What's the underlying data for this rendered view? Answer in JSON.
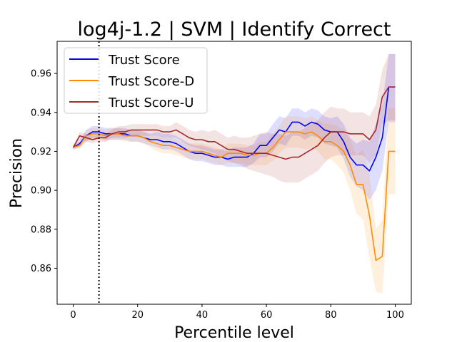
{
  "chart_data": {
    "type": "line",
    "title": "log4j-1.2 | SVM | Identify Correct",
    "xlabel": "Percentile level",
    "ylabel": "Precision",
    "xlim": [
      -5,
      105
    ],
    "ylim": [
      0.8415,
      0.9765
    ],
    "xticks": [
      0,
      20,
      40,
      60,
      80,
      100
    ],
    "yticks": [
      0.86,
      0.88,
      0.9,
      0.92,
      0.94,
      0.96
    ],
    "xtick_labels": [
      "0",
      "20",
      "40",
      "60",
      "80",
      "100"
    ],
    "ytick_labels": [
      "0.86",
      "0.88",
      "0.90",
      "0.92",
      "0.94",
      "0.96"
    ],
    "grid": false,
    "legend_position": "upper-left",
    "vline": {
      "x": 8,
      "style": "dotted",
      "color": "#000000"
    },
    "series": [
      {
        "name": "Trust Score",
        "color": "#0000ff",
        "x": [
          0,
          2,
          4,
          6,
          8,
          10,
          12,
          14,
          16,
          18,
          20,
          22,
          24,
          26,
          28,
          30,
          32,
          34,
          36,
          38,
          40,
          42,
          44,
          46,
          48,
          50,
          52,
          54,
          56,
          58,
          60,
          62,
          64,
          66,
          68,
          70,
          72,
          74,
          76,
          78,
          80,
          82,
          84,
          86,
          88,
          90,
          92,
          94,
          96,
          98,
          100
        ],
        "y": [
          0.922,
          0.924,
          0.928,
          0.93,
          0.93,
          0.929,
          0.929,
          0.929,
          0.929,
          0.928,
          0.928,
          0.927,
          0.926,
          0.926,
          0.925,
          0.925,
          0.924,
          0.922,
          0.92,
          0.919,
          0.919,
          0.918,
          0.917,
          0.917,
          0.916,
          0.917,
          0.917,
          0.917,
          0.919,
          0.923,
          0.923,
          0.927,
          0.931,
          0.93,
          0.935,
          0.935,
          0.933,
          0.935,
          0.934,
          0.931,
          0.93,
          0.93,
          0.925,
          0.917,
          0.913,
          0.913,
          0.91,
          0.917,
          0.927,
          0.953,
          0.953
        ],
        "band_low": [
          0.921,
          0.922,
          0.925,
          0.927,
          0.927,
          0.926,
          0.926,
          0.926,
          0.926,
          0.925,
          0.925,
          0.924,
          0.923,
          0.922,
          0.921,
          0.921,
          0.92,
          0.918,
          0.916,
          0.915,
          0.915,
          0.914,
          0.913,
          0.913,
          0.912,
          0.912,
          0.912,
          0.912,
          0.914,
          0.917,
          0.917,
          0.92,
          0.924,
          0.923,
          0.928,
          0.928,
          0.926,
          0.928,
          0.927,
          0.924,
          0.923,
          0.922,
          0.916,
          0.907,
          0.902,
          0.9,
          0.895,
          0.9,
          0.91,
          0.935,
          0.935
        ],
        "band_high": [
          0.923,
          0.926,
          0.931,
          0.933,
          0.933,
          0.932,
          0.932,
          0.932,
          0.932,
          0.931,
          0.931,
          0.93,
          0.929,
          0.93,
          0.929,
          0.929,
          0.928,
          0.926,
          0.924,
          0.923,
          0.923,
          0.922,
          0.921,
          0.921,
          0.92,
          0.922,
          0.922,
          0.922,
          0.924,
          0.929,
          0.929,
          0.934,
          0.938,
          0.937,
          0.942,
          0.942,
          0.94,
          0.942,
          0.941,
          0.938,
          0.937,
          0.938,
          0.934,
          0.927,
          0.924,
          0.926,
          0.925,
          0.934,
          0.944,
          0.97,
          0.97
        ]
      },
      {
        "name": "Trust Score-D",
        "color": "#ff8c00",
        "x": [
          0,
          2,
          4,
          6,
          8,
          10,
          12,
          14,
          16,
          18,
          20,
          22,
          24,
          26,
          28,
          30,
          32,
          34,
          36,
          38,
          40,
          42,
          44,
          46,
          48,
          50,
          52,
          54,
          56,
          58,
          60,
          62,
          64,
          66,
          68,
          70,
          72,
          74,
          76,
          78,
          80,
          82,
          84,
          86,
          88,
          90,
          92,
          94,
          96,
          98,
          100
        ],
        "y": [
          0.922,
          0.923,
          0.928,
          0.929,
          0.929,
          0.928,
          0.929,
          0.929,
          0.928,
          0.928,
          0.928,
          0.927,
          0.925,
          0.924,
          0.923,
          0.923,
          0.922,
          0.921,
          0.92,
          0.92,
          0.92,
          0.919,
          0.918,
          0.917,
          0.919,
          0.919,
          0.919,
          0.918,
          0.918,
          0.919,
          0.919,
          0.922,
          0.926,
          0.93,
          0.93,
          0.93,
          0.929,
          0.93,
          0.928,
          0.925,
          0.925,
          0.923,
          0.92,
          0.913,
          0.903,
          0.903,
          0.887,
          0.864,
          0.866,
          0.92,
          0.92
        ],
        "band_low": [
          0.921,
          0.921,
          0.925,
          0.926,
          0.926,
          0.925,
          0.926,
          0.926,
          0.925,
          0.925,
          0.925,
          0.924,
          0.922,
          0.92,
          0.919,
          0.919,
          0.918,
          0.917,
          0.916,
          0.916,
          0.916,
          0.915,
          0.914,
          0.913,
          0.914,
          0.914,
          0.914,
          0.913,
          0.913,
          0.913,
          0.913,
          0.915,
          0.919,
          0.922,
          0.922,
          0.922,
          0.921,
          0.922,
          0.92,
          0.916,
          0.916,
          0.913,
          0.909,
          0.9,
          0.888,
          0.885,
          0.865,
          0.848,
          0.847,
          0.898,
          0.898
        ],
        "band_high": [
          0.923,
          0.925,
          0.931,
          0.932,
          0.932,
          0.931,
          0.932,
          0.932,
          0.931,
          0.931,
          0.931,
          0.93,
          0.928,
          0.928,
          0.927,
          0.927,
          0.926,
          0.925,
          0.924,
          0.924,
          0.924,
          0.923,
          0.922,
          0.921,
          0.924,
          0.924,
          0.924,
          0.923,
          0.923,
          0.925,
          0.925,
          0.929,
          0.933,
          0.938,
          0.938,
          0.938,
          0.937,
          0.938,
          0.936,
          0.934,
          0.934,
          0.933,
          0.931,
          0.926,
          0.918,
          0.921,
          0.909,
          0.88,
          0.885,
          0.942,
          0.942
        ]
      },
      {
        "name": "Trust Score-U",
        "color": "#a52a2a",
        "x": [
          0,
          2,
          4,
          6,
          8,
          10,
          12,
          14,
          16,
          18,
          20,
          22,
          24,
          26,
          28,
          30,
          32,
          34,
          36,
          38,
          40,
          42,
          44,
          46,
          48,
          50,
          52,
          54,
          56,
          58,
          60,
          62,
          64,
          66,
          68,
          70,
          72,
          74,
          76,
          78,
          80,
          82,
          84,
          86,
          88,
          90,
          92,
          94,
          96,
          98,
          100
        ],
        "y": [
          0.922,
          0.928,
          0.927,
          0.926,
          0.927,
          0.927,
          0.929,
          0.93,
          0.93,
          0.931,
          0.931,
          0.931,
          0.931,
          0.931,
          0.93,
          0.93,
          0.931,
          0.929,
          0.927,
          0.926,
          0.926,
          0.925,
          0.925,
          0.923,
          0.921,
          0.921,
          0.92,
          0.919,
          0.919,
          0.919,
          0.919,
          0.918,
          0.917,
          0.916,
          0.917,
          0.917,
          0.919,
          0.921,
          0.923,
          0.927,
          0.93,
          0.93,
          0.93,
          0.929,
          0.929,
          0.929,
          0.926,
          0.931,
          0.948,
          0.953,
          0.953
        ],
        "band_low": [
          0.921,
          0.926,
          0.925,
          0.924,
          0.925,
          0.925,
          0.927,
          0.927,
          0.927,
          0.928,
          0.928,
          0.928,
          0.928,
          0.928,
          0.927,
          0.927,
          0.927,
          0.925,
          0.923,
          0.922,
          0.921,
          0.92,
          0.919,
          0.917,
          0.915,
          0.914,
          0.913,
          0.911,
          0.91,
          0.909,
          0.908,
          0.907,
          0.905,
          0.904,
          0.904,
          0.904,
          0.906,
          0.908,
          0.91,
          0.914,
          0.917,
          0.918,
          0.918,
          0.918,
          0.918,
          0.918,
          0.914,
          0.918,
          0.934,
          0.936,
          0.936
        ],
        "band_high": [
          0.923,
          0.93,
          0.929,
          0.928,
          0.929,
          0.929,
          0.931,
          0.933,
          0.933,
          0.934,
          0.934,
          0.934,
          0.934,
          0.934,
          0.933,
          0.933,
          0.935,
          0.933,
          0.931,
          0.93,
          0.931,
          0.93,
          0.931,
          0.929,
          0.927,
          0.928,
          0.927,
          0.927,
          0.928,
          0.929,
          0.93,
          0.929,
          0.929,
          0.928,
          0.93,
          0.93,
          0.932,
          0.934,
          0.936,
          0.94,
          0.943,
          0.942,
          0.942,
          0.94,
          0.94,
          0.94,
          0.938,
          0.944,
          0.962,
          0.97,
          0.97
        ]
      }
    ]
  }
}
